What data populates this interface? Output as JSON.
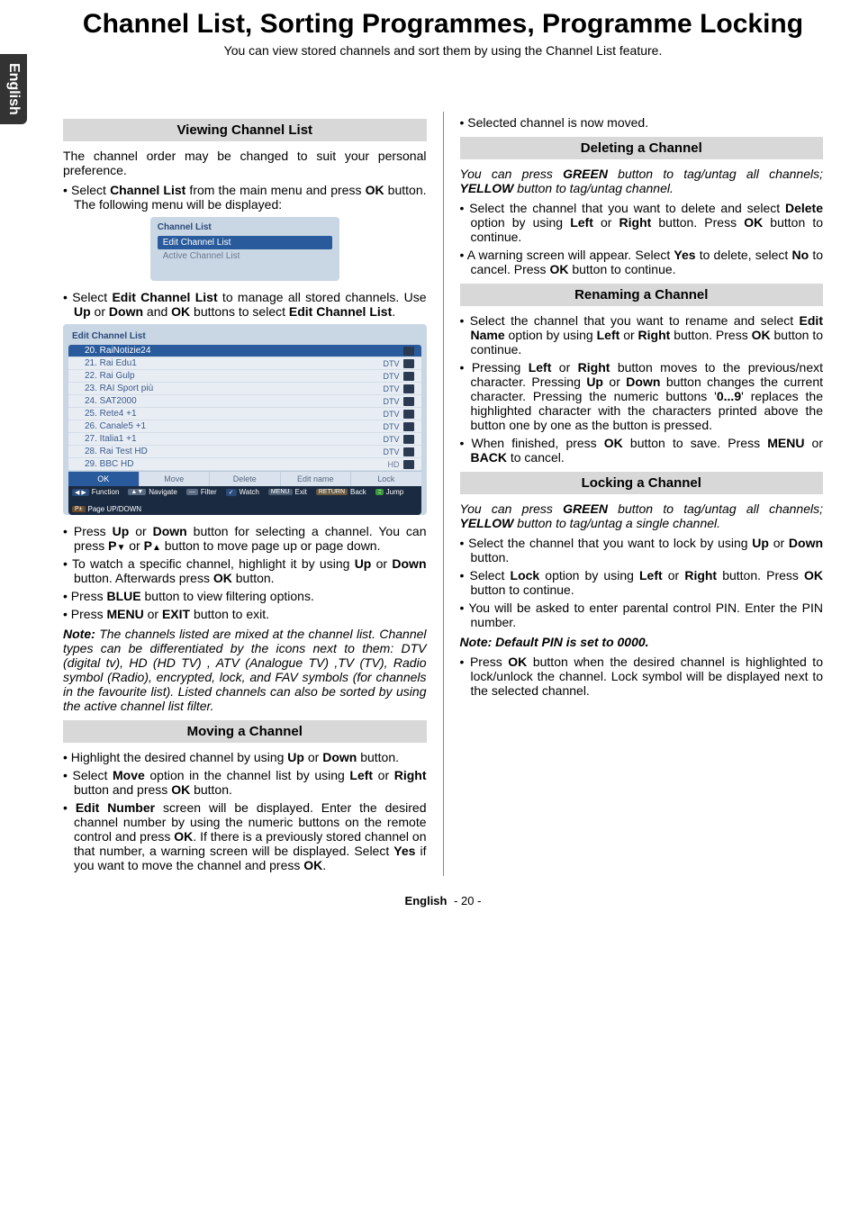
{
  "sideTab": "English",
  "title": "Channel List, Sorting Programmes, Programme Locking",
  "subtitle": "You can view stored channels and sort them by using the Channel List feature.",
  "footer": {
    "lang": "English",
    "page": "- 20 -"
  },
  "menuCard": {
    "title": "Channel List",
    "items": [
      "Edit Channel List",
      "Active Channel List"
    ]
  },
  "ecl": {
    "title": "Edit Channel List",
    "rows": [
      {
        "label": "20. RaiNotizie24",
        "tag": "",
        "selected": true
      },
      {
        "label": "21. Rai Edu1",
        "tag": "DTV"
      },
      {
        "label": "22. Rai Gulp",
        "tag": "DTV"
      },
      {
        "label": "23. RAI Sport più",
        "tag": "DTV"
      },
      {
        "label": "24. SAT2000",
        "tag": "DTV"
      },
      {
        "label": "25. Rete4 +1",
        "tag": "DTV"
      },
      {
        "label": "26. Canale5 +1",
        "tag": "DTV"
      },
      {
        "label": "27. Italia1 +1",
        "tag": "DTV"
      },
      {
        "label": "28. Rai Test HD",
        "tag": "DTV"
      },
      {
        "label": "29. BBC HD",
        "tag": "HD"
      }
    ],
    "actions": [
      "OK",
      "Move",
      "Delete",
      "Edit name",
      "Lock"
    ],
    "foot": [
      {
        "chip": "◀ ▶",
        "cls": "dir",
        "label": "Function"
      },
      {
        "chip": "▲▼",
        "cls": "blue",
        "label": "Navigate"
      },
      {
        "chip": "—",
        "cls": "blue",
        "label": "Filter"
      },
      {
        "chip": "✓",
        "cls": "dir",
        "label": "Watch"
      },
      {
        "chip": "MENU",
        "cls": "",
        "label": "Exit"
      },
      {
        "chip": "RETURN",
        "cls": "ret",
        "label": "Back"
      },
      {
        "chip": ":::",
        "cls": "dots",
        "label": "Jump"
      },
      {
        "chip": "P±",
        "cls": "pud",
        "label": "Page UP/DOWN"
      }
    ]
  },
  "col1": {
    "h1": "Viewing Channel List",
    "p1": "The channel order may be changed to suit your personal preference.",
    "b1": "Select <b>Channel List</b> from the main menu and press <b>OK</b> button. The following menu will be displayed:",
    "b2": "Select <b>Edit Channel List</b> to manage all stored channels. Use <b>Up</b> or <b>Down</b> and <b>OK</b> buttons to select <b>Edit Channel List</b>.",
    "b3": "Press <b>Up</b> or <b>Down</b> button for selecting a channel. You can press <b>P</b><span class='arrow-down'></span> or <b>P</b><span class='arrow-up'></span> button to move page up or page down.",
    "b4": "To watch a specific channel, highlight it by using <b>Up</b> or <b>Down</b> button. Afterwards press <b>OK</b> button.",
    "b5": "Press <b>BLUE</b> button to view filtering options.",
    "b6": "Press <b>MENU</b> or <b>EXIT</b> button to exit.",
    "note1": "<b><i>Note:</i></b> <i>The channels listed are mixed at the channel list. Channel types can be differentiated by the icons next to them: DTV (digital tv), HD (HD TV) , ATV (Analogue TV) ,TV (TV), Radio symbol (Radio), encrypted, lock, and FAV symbols (for channels in the favourite list). Listed channels can also be sorted by using the active channel list filter.</i>",
    "h2": "Moving a Channel",
    "m1": "Highlight the desired channel by using <b>Up</b> or <b>Down</b> button.",
    "m2": "Select <b>Move</b> option in the channel list by using <b>Left</b> or <b>Right</b> button and press <b>OK</b> button.",
    "m3": "<b>Edit Number</b> screen will be displayed. Enter the desired channel number by using the numeric buttons on the remote control and press <b>OK</b>. If there is a previously stored channel on that number, a warning screen will be displayed. Select <b>Yes</b> if you want to move the channel and press <b>OK</b>."
  },
  "col2": {
    "b0": "Selected channel is now moved.",
    "h1": "Deleting a Channel",
    "i1": "<i>You can press <b>GREEN</b> button to tag/untag all channels; <b>YELLOW</b> button to tag/untag channel.</i>",
    "d1": "Select the channel that you want to delete and select <b>Delete</b> option by using <b>Left</b> or <b>Right</b> button. Press <b>OK</b> button to continue.",
    "d2": "A warning screen will appear. Select <b>Yes</b> to delete, select <b>No</b> to cancel. Press <b>OK</b> button to continue.",
    "h2": "Renaming a Channel",
    "r1": "Select the channel that you want to rename and select <b>Edit Name</b> option by using <b>Left</b> or <b>Right</b> button. Press <b>OK</b> button to continue.",
    "r2": "Pressing <b>Left</b> or <b>Right</b> button moves to the previous/next character. Pressing <b>Up</b> or <b>Down</b> button changes the current character. Pressing the numeric buttons '<b>0...9</b>' replaces the highlighted character with the characters printed above the button one by one as the button is pressed.",
    "r3": "When finished, press <b>OK</b> button to save. Press <b>MENU</b> or <b>BACK</b> to cancel.",
    "h3": "Locking a Channel",
    "i2": "<i>You can press <b>GREEN</b> button to tag/untag all channels; <b>YELLOW</b> button to tag/untag a single channel.</i>",
    "l1": "Select the channel that you want to lock by using <b>Up</b> or <b>Down</b> button.",
    "l2": "Select <b>Lock</b> option by using <b>Left</b> or <b>Right</b> button. Press <b>OK</b> button to continue.",
    "l3": "You will be asked to enter parental control PIN. Enter the PIN number.",
    "note2": "<b><i>Note: Default PIN is set to 0000.</i></b>",
    "l4": "Press <b>OK</b> button when the desired channel is highlighted to lock/unlock the channel. Lock symbol will be displayed next to the selected channel."
  }
}
